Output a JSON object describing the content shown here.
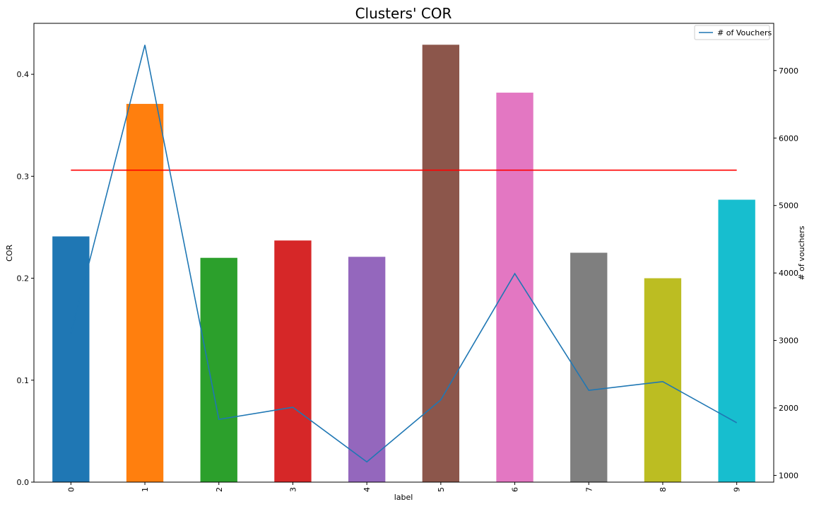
{
  "chart_data": {
    "type": "bar",
    "title": "Clusters' COR",
    "xlabel": "label",
    "ylabel": "COR",
    "y2label": "# of vouchers",
    "categories": [
      "0",
      "1",
      "2",
      "3",
      "4",
      "5",
      "6",
      "7",
      "8",
      "9"
    ],
    "bar_series": {
      "name": "COR",
      "values": [
        0.241,
        0.371,
        0.22,
        0.237,
        0.221,
        0.429,
        0.382,
        0.225,
        0.2,
        0.277
      ],
      "colors": [
        "#1f77b4",
        "#ff7f0e",
        "#2ca02c",
        "#d62728",
        "#9467bd",
        "#8c564b",
        "#e377c2",
        "#7f7f7f",
        "#bcbd22",
        "#17becf"
      ]
    },
    "reference_line": {
      "value": 0.306,
      "color": "#ff0000"
    },
    "line_series": {
      "name": "# of Vouchers",
      "axis": "right",
      "values": [
        3100,
        7380,
        1830,
        2010,
        1200,
        2120,
        3990,
        2260,
        2390,
        1780
      ],
      "color": "#1f77b4"
    },
    "ylim": [
      0,
      0.45
    ],
    "y2lim": [
      900,
      7700
    ],
    "yticks": [
      0.0,
      0.1,
      0.2,
      0.3,
      0.4
    ],
    "ytick_labels": [
      "0.0",
      "0.1",
      "0.2",
      "0.3",
      "0.4"
    ],
    "y2ticks": [
      1000,
      2000,
      3000,
      4000,
      5000,
      6000,
      7000
    ],
    "y2tick_labels": [
      "1000",
      "2000",
      "3000",
      "4000",
      "5000",
      "6000",
      "7000"
    ],
    "legend": {
      "placement": "top-right",
      "entries": [
        "# of Vouchers"
      ]
    },
    "grid": false
  }
}
